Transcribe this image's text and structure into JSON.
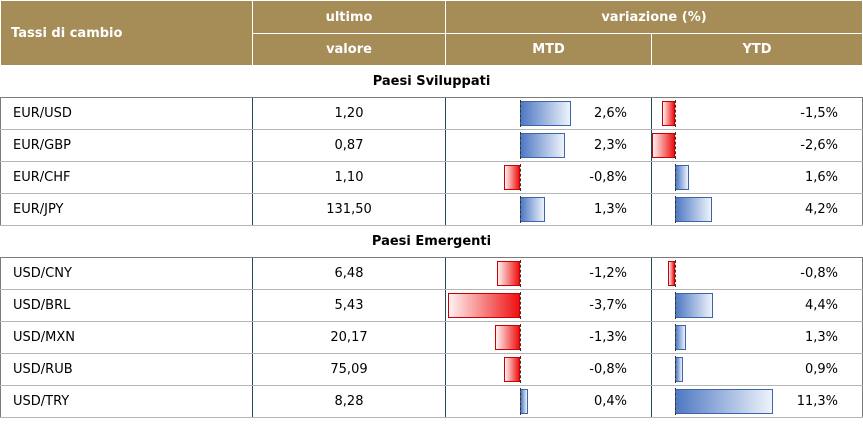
{
  "header": {
    "col1": "Tassi di cambio",
    "col2_top": "ultimo",
    "col2_bottom": "valore",
    "variation": "variazione (%)",
    "mtd": "MTD",
    "ytd": "YTD"
  },
  "sections": [
    {
      "title": "Paesi Sviluppati",
      "rows": [
        {
          "pair": "EUR/USD",
          "value": "1,20",
          "mtd": "2,6%",
          "mtd_num": 2.6,
          "ytd": "-1,5%",
          "ytd_num": -1.5
        },
        {
          "pair": "EUR/GBP",
          "value": "0,87",
          "mtd": "2,3%",
          "mtd_num": 2.3,
          "ytd": "-2,6%",
          "ytd_num": -2.6
        },
        {
          "pair": "EUR/CHF",
          "value": "1,10",
          "mtd": "-0,8%",
          "mtd_num": -0.8,
          "ytd": "1,6%",
          "ytd_num": 1.6
        },
        {
          "pair": "EUR/JPY",
          "value": "131,50",
          "mtd": "1,3%",
          "mtd_num": 1.3,
          "ytd": "4,2%",
          "ytd_num": 4.2
        }
      ]
    },
    {
      "title": "Paesi Emergenti",
      "rows": [
        {
          "pair": "USD/CNY",
          "value": "6,48",
          "mtd": "-1,2%",
          "mtd_num": -1.2,
          "ytd": "-0,8%",
          "ytd_num": -0.8
        },
        {
          "pair": "USD/BRL",
          "value": "5,43",
          "mtd": "-3,7%",
          "mtd_num": -3.7,
          "ytd": "4,4%",
          "ytd_num": 4.4
        },
        {
          "pair": "USD/MXN",
          "value": "20,17",
          "mtd": "-1,3%",
          "mtd_num": -1.3,
          "ytd": "1,3%",
          "ytd_num": 1.3
        },
        {
          "pair": "USD/RUB",
          "value": "75,09",
          "mtd": "-0,8%",
          "mtd_num": -0.8,
          "ytd": "0,9%",
          "ytd_num": 0.9
        },
        {
          "pair": "USD/TRY",
          "value": "8,28",
          "mtd": "0,4%",
          "mtd_num": 0.4,
          "ytd": "11,3%",
          "ytd_num": 11.3
        }
      ]
    }
  ],
  "colors": {
    "header_bg": "#a68d58",
    "positive": "#4f79c3",
    "negative": "#ee1111"
  }
}
